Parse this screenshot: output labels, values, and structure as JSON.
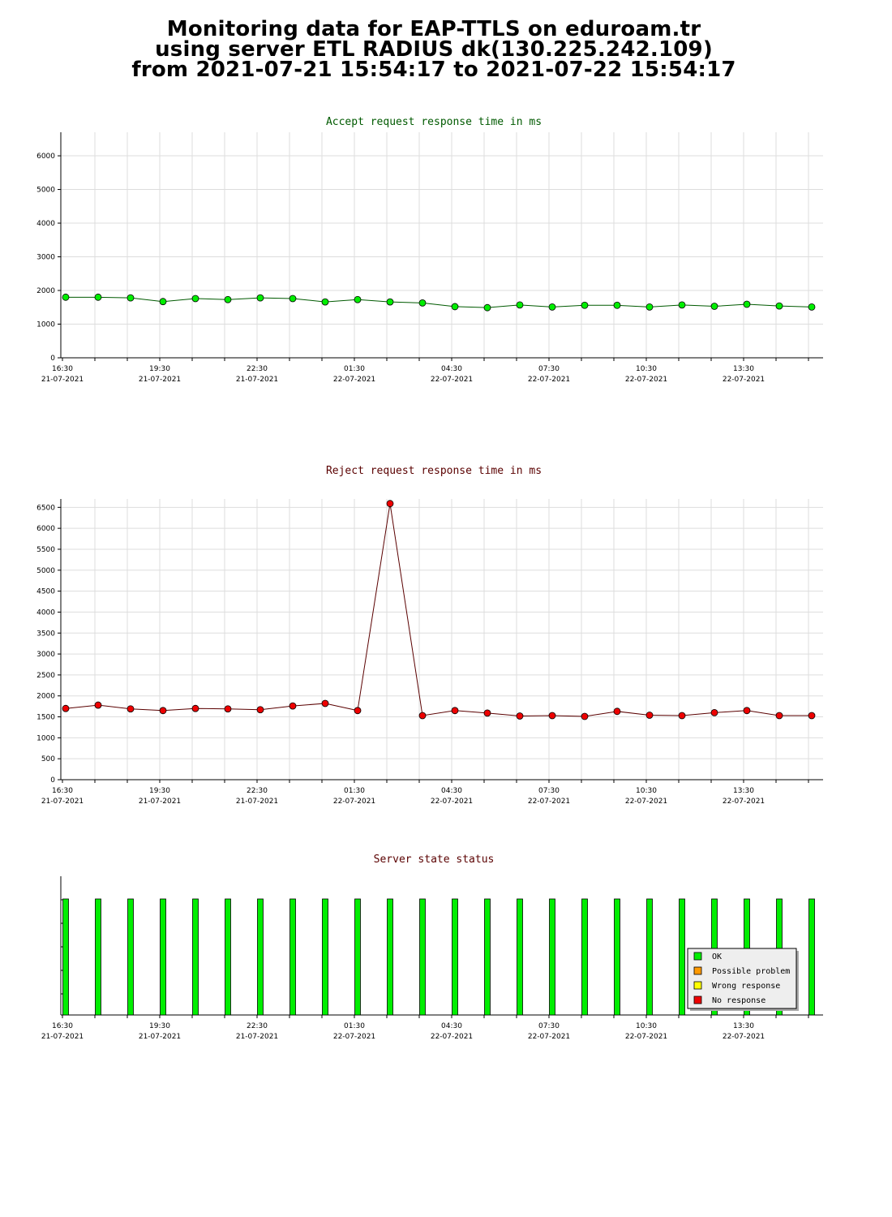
{
  "page_title": {
    "line1": "Monitoring data for EAP-TTLS on eduroam.tr",
    "line2": "using server ETL RADIUS dk(130.225.242.109)",
    "line3": "from 2021-07-21 15:54:17 to 2021-07-22 15:54:17"
  },
  "colors": {
    "accept_title": "#005a00",
    "reject_title": "#5a0000",
    "status_title": "#5a0000",
    "accept_point": "#00ee00",
    "accept_line": "#005a00",
    "reject_point": "#ee0000",
    "reject_line": "#5a0000",
    "ok": "#00ee00",
    "possible_problem": "#ff9900",
    "wrong_response": "#ffff00",
    "no_response": "#ee0000",
    "grid": "#dddddd"
  },
  "chart_data": [
    {
      "id": "accept",
      "type": "line",
      "title": "Accept request response time in ms",
      "x_start": "16:00 21-07-2021",
      "x_step_minutes": 90,
      "x_tick_labels": [
        {
          "time": "16:30",
          "date": "21-07-2021"
        },
        {
          "time": "19:30",
          "date": "21-07-2021"
        },
        {
          "time": "22:30",
          "date": "21-07-2021"
        },
        {
          "time": "01:30",
          "date": "22-07-2021"
        },
        {
          "time": "04:30",
          "date": "22-07-2021"
        },
        {
          "time": "07:30",
          "date": "22-07-2021"
        },
        {
          "time": "10:30",
          "date": "22-07-2021"
        },
        {
          "time": "13:30",
          "date": "22-07-2021"
        }
      ],
      "ylim": [
        0,
        6700
      ],
      "y_ticks": [
        0,
        1000,
        2000,
        3000,
        4000,
        5000,
        6000
      ],
      "grid": true,
      "series": [
        {
          "values": [
            1800,
            1800,
            1780,
            1670,
            1760,
            1730,
            1780,
            1760,
            1660,
            1730,
            1660,
            1630,
            1520,
            1490,
            1570,
            1510,
            1560,
            1560,
            1510,
            1570,
            1530,
            1590,
            1540,
            1510
          ]
        }
      ]
    },
    {
      "id": "reject",
      "type": "line",
      "title": "Reject request response time in ms",
      "x_start": "16:00 21-07-2021",
      "x_step_minutes": 90,
      "x_tick_labels": [
        {
          "time": "16:30",
          "date": "21-07-2021"
        },
        {
          "time": "19:30",
          "date": "21-07-2021"
        },
        {
          "time": "22:30",
          "date": "21-07-2021"
        },
        {
          "time": "01:30",
          "date": "22-07-2021"
        },
        {
          "time": "04:30",
          "date": "22-07-2021"
        },
        {
          "time": "07:30",
          "date": "22-07-2021"
        },
        {
          "time": "10:30",
          "date": "22-07-2021"
        },
        {
          "time": "13:30",
          "date": "22-07-2021"
        }
      ],
      "ylim": [
        0,
        6700
      ],
      "y_ticks": [
        0,
        500,
        1000,
        1500,
        2000,
        2500,
        3000,
        3500,
        4000,
        4500,
        5000,
        5500,
        6000,
        6500
      ],
      "grid": true,
      "series": [
        {
          "values": [
            1700,
            1780,
            1690,
            1650,
            1700,
            1690,
            1670,
            1760,
            1820,
            1650,
            6590,
            1530,
            1650,
            1590,
            1520,
            1530,
            1510,
            1630,
            1540,
            1530,
            1600,
            1650,
            1530,
            1530
          ]
        }
      ]
    },
    {
      "id": "status",
      "type": "bar",
      "title": "Server state status",
      "x_start": "16:00 21-07-2021",
      "x_step_minutes": 90,
      "x_tick_labels": [
        {
          "time": "16:30",
          "date": "21-07-2021"
        },
        {
          "time": "19:30",
          "date": "21-07-2021"
        },
        {
          "time": "22:30",
          "date": "21-07-2021"
        },
        {
          "time": "01:30",
          "date": "22-07-2021"
        },
        {
          "time": "04:30",
          "date": "22-07-2021"
        },
        {
          "time": "07:30",
          "date": "22-07-2021"
        },
        {
          "time": "10:30",
          "date": "22-07-2021"
        },
        {
          "time": "13:30",
          "date": "22-07-2021"
        }
      ],
      "states": [
        "ok",
        "ok",
        "ok",
        "ok",
        "ok",
        "ok",
        "ok",
        "ok",
        "ok",
        "ok",
        "ok",
        "ok",
        "ok",
        "ok",
        "ok",
        "ok",
        "ok",
        "ok",
        "ok",
        "ok",
        "ok",
        "ok",
        "ok",
        "ok"
      ],
      "legend_position": "bottom-right",
      "legend": [
        {
          "key": "ok",
          "label": "OK"
        },
        {
          "key": "possible_problem",
          "label": "Possible problem"
        },
        {
          "key": "wrong_response",
          "label": "Wrong response"
        },
        {
          "key": "no_response",
          "label": "No response"
        }
      ]
    }
  ]
}
